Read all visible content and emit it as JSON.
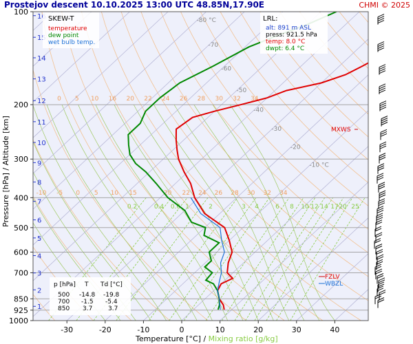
{
  "header": {
    "title": "Prostejov   descent   10.10.2025 13:00 UTC  48.85N,17.90E",
    "copyright": "CHMI © 2025"
  },
  "colors": {
    "panel_bg": "#eef0fb",
    "temperature": "#e00000",
    "dewpoint": "#008800",
    "wetbulb": "#1a6fd6",
    "isobar": "#9a9a9a",
    "isotherm": "#b8b8d8",
    "dry_adiabat": "#f2c090",
    "moist_adiabat": "#9ec860",
    "mixing_ratio": "#88cc44",
    "height_axis": "#2233cc",
    "title": "#000099",
    "copyright": "#d00000"
  },
  "legend": {
    "title": "SKEW-T",
    "items": [
      {
        "label": "temperature",
        "color": "#e00000"
      },
      {
        "label": "dew point",
        "color": "#008800"
      },
      {
        "label": "wet bulb temp.",
        "color": "#1a6fd6"
      }
    ]
  },
  "lrl_box": {
    "title": "LRL:",
    "lines": [
      {
        "text": "alt: 891 m ASL",
        "color": "#1a3fcc"
      },
      {
        "text": "press: 921.5 hPa",
        "color": "#000000"
      },
      {
        "text": "temp: 8.0 °C",
        "color": "#e00000"
      },
      {
        "text": "dwpt: 6.4 °C",
        "color": "#008800"
      }
    ]
  },
  "table": {
    "header": [
      "p [hPa]",
      "T",
      "Td [°C]"
    ],
    "rows": [
      [
        "500",
        "-14.8",
        "-19.8"
      ],
      [
        "700",
        "-1.5",
        "-5.4"
      ],
      [
        "850",
        "3.7",
        "3.7"
      ]
    ]
  },
  "markers": {
    "mxws": "MXWS",
    "fzlv": "FZLV",
    "wbzl": "WBZL"
  },
  "chart_data": {
    "type": "line",
    "ylabel": "Pressure [hPa]  /  Altitude [km]",
    "xlabel": "Temperature [°C]",
    "xlabel_sep": "  /  ",
    "xlabel2": "Mixing ratio [g/kg]",
    "xlim": [
      -40,
      50
    ],
    "ylim": [
      1000,
      100
    ],
    "pressure_ticks": [
      100,
      200,
      300,
      400,
      500,
      600,
      700,
      850,
      925,
      1000
    ],
    "temperature_ticks": [
      -30,
      -20,
      -10,
      0,
      10,
      20,
      30,
      40
    ],
    "altitude_ticks_km": [
      {
        "label": "16",
        "p": 103
      },
      {
        "label": "15",
        "p": 121
      },
      {
        "label": "14",
        "p": 141
      },
      {
        "label": "13",
        "p": 165
      },
      {
        "label": "12",
        "p": 194
      },
      {
        "label": "11",
        "p": 227
      },
      {
        "label": "10",
        "p": 265
      },
      {
        "label": "9",
        "p": 308
      },
      {
        "label": "8",
        "p": 356
      },
      {
        "label": "7",
        "p": 411
      },
      {
        "label": "6",
        "p": 472
      },
      {
        "label": "5",
        "p": 540
      },
      {
        "label": "4",
        "p": 616
      },
      {
        "label": "3",
        "p": 701
      },
      {
        "label": "2",
        "p": 795
      },
      {
        "label": "1",
        "p": 899
      }
    ],
    "isotherm_labels": [
      {
        "label": "-80 °C",
        "p": 108
      },
      {
        "label": "-70",
        "p": 130
      },
      {
        "label": "-60",
        "p": 155
      },
      {
        "label": "-50",
        "p": 182
      },
      {
        "label": "-40",
        "p": 211
      },
      {
        "label": "-30",
        "p": 243
      },
      {
        "label": "-20",
        "p": 278
      },
      {
        "label": "-10 °C",
        "p": 318
      }
    ],
    "dry_adiabat_labels_row1": [
      "0",
      "5",
      "10",
      "16",
      "20",
      "22",
      "24",
      "26",
      "28",
      "30",
      "32",
      "34"
    ],
    "dry_adiabat_labels_row2": [
      "-10",
      "-5",
      "0",
      "5",
      "10",
      "15",
      "20",
      "22",
      "24",
      "26",
      "28",
      "30",
      "32",
      "34"
    ],
    "mixing_ratio_labels": [
      "0.2",
      "0.4",
      "0.6",
      "1",
      "2",
      "3",
      "4",
      "6",
      "8",
      "10",
      "12",
      "14",
      "17",
      "20",
      "25"
    ],
    "series": [
      {
        "name": "temperature",
        "points": [
          {
            "p": 100,
            "t": -12
          },
          {
            "p": 110,
            "t": -13
          },
          {
            "p": 120,
            "t": -17
          },
          {
            "p": 130,
            "t": -17
          },
          {
            "p": 140,
            "t": -22
          },
          {
            "p": 150,
            "t": -24
          },
          {
            "p": 160,
            "t": -26
          },
          {
            "p": 170,
            "t": -30
          },
          {
            "p": 180,
            "t": -37
          },
          {
            "p": 190,
            "t": -40
          },
          {
            "p": 200,
            "t": -45
          },
          {
            "p": 210,
            "t": -50
          },
          {
            "p": 220,
            "t": -54
          },
          {
            "p": 240,
            "t": -55
          },
          {
            "p": 260,
            "t": -52
          },
          {
            "p": 280,
            "t": -49
          },
          {
            "p": 300,
            "t": -46
          },
          {
            "p": 330,
            "t": -41
          },
          {
            "p": 360,
            "t": -36
          },
          {
            "p": 400,
            "t": -31
          },
          {
            "p": 450,
            "t": -24
          },
          {
            "p": 500,
            "t": -14.8
          },
          {
            "p": 550,
            "t": -10
          },
          {
            "p": 600,
            "t": -6
          },
          {
            "p": 650,
            "t": -4
          },
          {
            "p": 700,
            "t": -1.5
          },
          {
            "p": 730,
            "t": 1.5
          },
          {
            "p": 760,
            "t": 0
          },
          {
            "p": 800,
            "t": 1
          },
          {
            "p": 850,
            "t": 3.7
          },
          {
            "p": 890,
            "t": 6.5
          },
          {
            "p": 921,
            "t": 8.0
          }
        ]
      },
      {
        "name": "dew point",
        "points": [
          {
            "p": 100,
            "t": -46
          },
          {
            "p": 110,
            "t": -50
          },
          {
            "p": 120,
            "t": -55
          },
          {
            "p": 130,
            "t": -59
          },
          {
            "p": 150,
            "t": -63
          },
          {
            "p": 170,
            "t": -67
          },
          {
            "p": 190,
            "t": -68
          },
          {
            "p": 210,
            "t": -68
          },
          {
            "p": 230,
            "t": -66
          },
          {
            "p": 250,
            "t": -66
          },
          {
            "p": 270,
            "t": -63
          },
          {
            "p": 290,
            "t": -60
          },
          {
            "p": 310,
            "t": -56
          },
          {
            "p": 330,
            "t": -51
          },
          {
            "p": 360,
            "t": -45
          },
          {
            "p": 400,
            "t": -38
          },
          {
            "p": 440,
            "t": -30
          },
          {
            "p": 480,
            "t": -25
          },
          {
            "p": 500,
            "t": -19.8
          },
          {
            "p": 530,
            "t": -18
          },
          {
            "p": 560,
            "t": -12
          },
          {
            "p": 600,
            "t": -12
          },
          {
            "p": 640,
            "t": -9
          },
          {
            "p": 670,
            "t": -9
          },
          {
            "p": 700,
            "t": -5.4
          },
          {
            "p": 740,
            "t": -5
          },
          {
            "p": 760,
            "t": -2
          },
          {
            "p": 800,
            "t": 1
          },
          {
            "p": 850,
            "t": 3.7
          },
          {
            "p": 890,
            "t": 5.5
          },
          {
            "p": 921,
            "t": 6.4
          }
        ]
      },
      {
        "name": "wet bulb temp.",
        "points": [
          {
            "p": 400,
            "t": -32
          },
          {
            "p": 450,
            "t": -25
          },
          {
            "p": 500,
            "t": -16
          },
          {
            "p": 550,
            "t": -12
          },
          {
            "p": 600,
            "t": -8
          },
          {
            "p": 650,
            "t": -6
          },
          {
            "p": 700,
            "t": -3
          },
          {
            "p": 750,
            "t": -1
          },
          {
            "p": 800,
            "t": 1
          },
          {
            "p": 850,
            "t": 3.7
          },
          {
            "p": 921,
            "t": 7.0
          }
        ]
      }
    ]
  }
}
